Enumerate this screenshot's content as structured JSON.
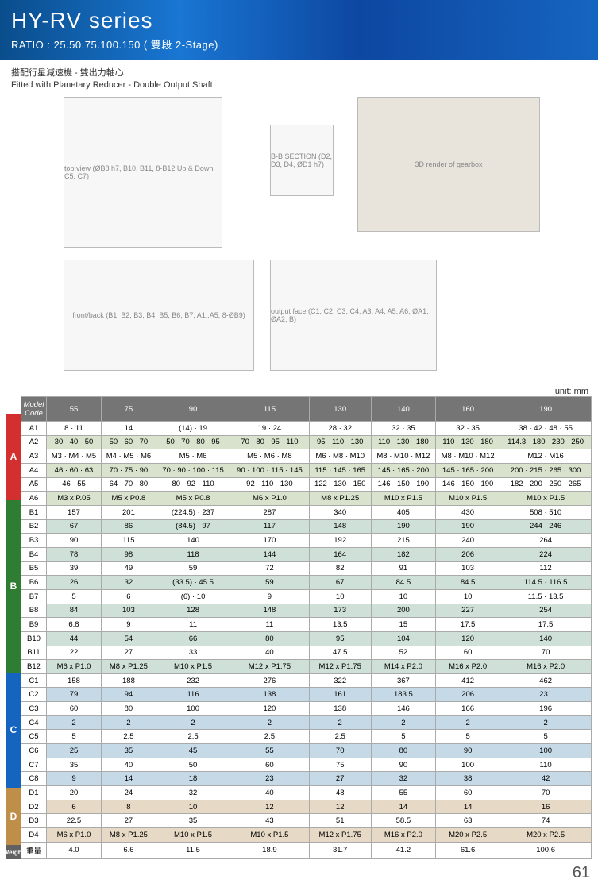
{
  "header": {
    "title": "HY-RV series",
    "ratio": "RATIO : 25.50.75.100.150 ( 雙段 2-Stage)"
  },
  "subtitle": {
    "cn": "搭配行星減速機 - 雙出力軸心",
    "en": "Fitted with Planetary Reducer - Double Output Shaft"
  },
  "diagrams": {
    "d1": "top view (ØB8 h7, B10, B11, 8-B12 Up & Down, C5, C7)",
    "d2": "B-B SECTION (D2, D3, D4, ØD1 h7)",
    "d3": "3D render of gearbox",
    "d4": "front/back (B1, B2, B3, B4, B5, B6, B7, A1..A5, 8-ØB9)",
    "d5": "output face (C1, C2, C3, C4, A3, A4, A5, A6, ØA1, ØA2, B)"
  },
  "unit_label": "unit: mm",
  "table": {
    "header": [
      "Model Code",
      "55",
      "75",
      "90",
      "115",
      "130",
      "140",
      "160",
      "190"
    ],
    "sections": [
      {
        "label": "A",
        "class": "tab-A",
        "shade": "row-shade",
        "rows": [
          [
            "A1",
            "8 · 11",
            "14",
            "(14) · 19",
            "19 · 24",
            "28 · 32",
            "32 · 35",
            "32 · 35",
            "38 · 42 · 48 · 55"
          ],
          [
            "A2",
            "30 · 40 · 50",
            "50 · 60 · 70",
            "50 · 70 · 80 · 95",
            "70 · 80 · 95 · 110",
            "95 · 110 · 130",
            "110 · 130 · 180",
            "110 · 130 · 180",
            "114.3 · 180 · 230 · 250"
          ],
          [
            "A3",
            "M3 · M4 · M5",
            "M4 · M5 · M6",
            "M5 · M6",
            "M5 · M6 · M8",
            "M6 · M8 · M10",
            "M8 · M10 · M12",
            "M8 · M10 · M12",
            "M12 · M16"
          ],
          [
            "A4",
            "46 · 60 · 63",
            "70 · 75 · 90",
            "70 · 90 · 100 · 115",
            "90 · 100 · 115 · 145",
            "115 · 145 · 165",
            "145 · 165 · 200",
            "145 · 165 · 200",
            "200 · 215 · 265 · 300"
          ],
          [
            "A5",
            "46 · 55",
            "64 · 70 · 80",
            "80 · 92 · 110",
            "92 · 110 · 130",
            "122 · 130 · 150",
            "146 · 150 · 190",
            "146 · 150 · 190",
            "182 · 200 · 250 · 265"
          ],
          [
            "A6",
            "M3 x P.05",
            "M5 x P0.8",
            "M5 x P0.8",
            "M6 x P1.0",
            "M8 x P1.25",
            "M10 x P1.5",
            "M10 x P1.5",
            "M10 x P1.5"
          ]
        ]
      },
      {
        "label": "B",
        "class": "tab-B",
        "shade": "row-shade-b",
        "rows": [
          [
            "B1",
            "157",
            "201",
            "(224.5) · 237",
            "287",
            "340",
            "405",
            "430",
            "508 · 510"
          ],
          [
            "B2",
            "67",
            "86",
            "(84.5) · 97",
            "117",
            "148",
            "190",
            "190",
            "244 · 246"
          ],
          [
            "B3",
            "90",
            "115",
            "140",
            "170",
            "192",
            "215",
            "240",
            "264"
          ],
          [
            "B4",
            "78",
            "98",
            "118",
            "144",
            "164",
            "182",
            "206",
            "224"
          ],
          [
            "B5",
            "39",
            "49",
            "59",
            "72",
            "82",
            "91",
            "103",
            "112"
          ],
          [
            "B6",
            "26",
            "32",
            "(33.5) · 45.5",
            "59",
            "67",
            "84.5",
            "84.5",
            "114.5 · 116.5"
          ],
          [
            "B7",
            "5",
            "6",
            "(6) · 10",
            "9",
            "10",
            "10",
            "10",
            "11.5 · 13.5"
          ],
          [
            "B8",
            "84",
            "103",
            "128",
            "148",
            "173",
            "200",
            "227",
            "254"
          ],
          [
            "B9",
            "6.8",
            "9",
            "11",
            "11",
            "13.5",
            "15",
            "17.5",
            "17.5"
          ],
          [
            "B10",
            "44",
            "54",
            "66",
            "80",
            "95",
            "104",
            "120",
            "140"
          ],
          [
            "B11",
            "22",
            "27",
            "33",
            "40",
            "47.5",
            "52",
            "60",
            "70"
          ],
          [
            "B12",
            "M6 x P1.0",
            "M8 x P1.25",
            "M10 x P1.5",
            "M12 x P1.75",
            "M12 x P1.75",
            "M14 x P2.0",
            "M16 x P2.0",
            "M16 x P2.0"
          ]
        ]
      },
      {
        "label": "C",
        "class": "tab-C",
        "shade": "row-shade-c",
        "rows": [
          [
            "C1",
            "158",
            "188",
            "232",
            "276",
            "322",
            "367",
            "412",
            "462"
          ],
          [
            "C2",
            "79",
            "94",
            "116",
            "138",
            "161",
            "183.5",
            "206",
            "231"
          ],
          [
            "C3",
            "60",
            "80",
            "100",
            "120",
            "138",
            "146",
            "166",
            "196"
          ],
          [
            "C4",
            "2",
            "2",
            "2",
            "2",
            "2",
            "2",
            "2",
            "2"
          ],
          [
            "C5",
            "5",
            "2.5",
            "2.5",
            "2.5",
            "2.5",
            "5",
            "5",
            "5"
          ],
          [
            "C6",
            "25",
            "35",
            "45",
            "55",
            "70",
            "80",
            "90",
            "100"
          ],
          [
            "C7",
            "35",
            "40",
            "50",
            "60",
            "75",
            "90",
            "100",
            "110"
          ],
          [
            "C8",
            "9",
            "14",
            "18",
            "23",
            "27",
            "32",
            "38",
            "42"
          ]
        ]
      },
      {
        "label": "D",
        "class": "tab-D",
        "shade": "row-shade-d",
        "rows": [
          [
            "D1",
            "20",
            "24",
            "32",
            "40",
            "48",
            "55",
            "60",
            "70"
          ],
          [
            "D2",
            "6",
            "8",
            "10",
            "12",
            "12",
            "14",
            "14",
            "16"
          ],
          [
            "D3",
            "22.5",
            "27",
            "35",
            "43",
            "51",
            "58.5",
            "63",
            "74"
          ],
          [
            "D4",
            "M6 x P1.0",
            "M8 x P1.25",
            "M10 x P1.5",
            "M10 x P1.5",
            "M12 x P1.75",
            "M16 x P2.0",
            "M20 x P2.5",
            "M20 x P2.5"
          ]
        ]
      },
      {
        "label": "Weight",
        "class": "tab-W",
        "shade": "",
        "rows": [
          [
            "重量",
            "4.0",
            "6.6",
            "11.5",
            "18.9",
            "31.7",
            "41.2",
            "61.6",
            "100.6"
          ]
        ]
      }
    ]
  },
  "page_number": "61"
}
